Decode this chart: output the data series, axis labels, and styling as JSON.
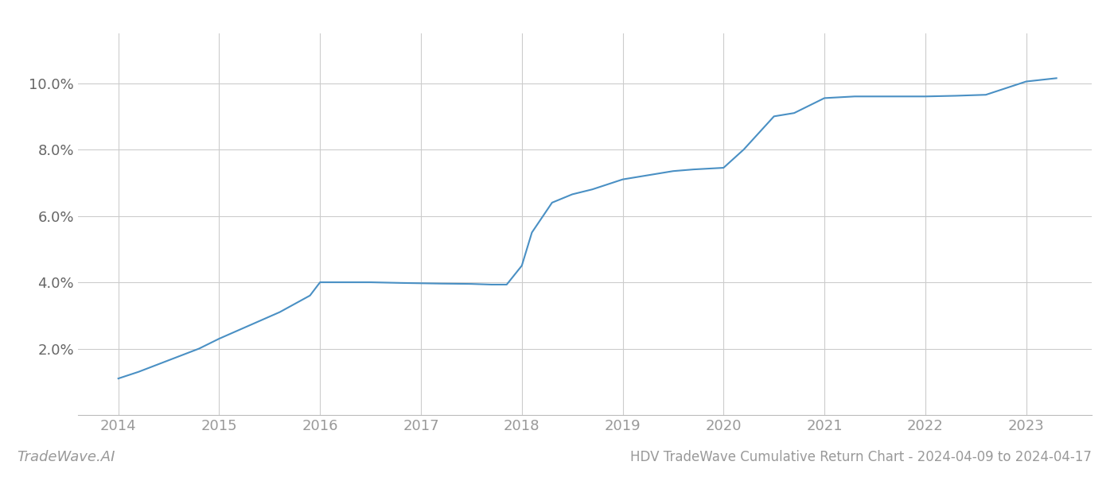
{
  "x_years": [
    2014.0,
    2014.2,
    2014.5,
    2014.8,
    2015.0,
    2015.3,
    2015.6,
    2015.9,
    2016.0,
    2016.2,
    2016.5,
    2016.8,
    2017.0,
    2017.2,
    2017.5,
    2017.7,
    2017.85,
    2018.0,
    2018.1,
    2018.3,
    2018.5,
    2018.7,
    2019.0,
    2019.2,
    2019.5,
    2019.7,
    2020.0,
    2020.2,
    2020.5,
    2020.7,
    2021.0,
    2021.3,
    2021.6,
    2022.0,
    2022.3,
    2022.6,
    2023.0,
    2023.3
  ],
  "y_values": [
    1.1,
    1.3,
    1.65,
    2.0,
    2.3,
    2.7,
    3.1,
    3.6,
    4.0,
    4.0,
    4.0,
    3.98,
    3.97,
    3.96,
    3.95,
    3.93,
    3.93,
    4.5,
    5.5,
    6.4,
    6.65,
    6.8,
    7.1,
    7.2,
    7.35,
    7.4,
    7.45,
    8.0,
    9.0,
    9.1,
    9.55,
    9.6,
    9.6,
    9.6,
    9.62,
    9.65,
    10.05,
    10.15
  ],
  "line_color": "#4a90c4",
  "line_width": 1.5,
  "background_color": "#ffffff",
  "grid_color": "#cccccc",
  "ylabel_color": "#666666",
  "xlabel_color": "#999999",
  "title": "HDV TradeWave Cumulative Return Chart - 2024-04-09 to 2024-04-17",
  "watermark": "TradeWave.AI",
  "x_ticks": [
    2014,
    2015,
    2016,
    2017,
    2018,
    2019,
    2020,
    2021,
    2022,
    2023
  ],
  "x_tick_labels": [
    "2014",
    "2015",
    "2016",
    "2017",
    "2018",
    "2019",
    "2020",
    "2021",
    "2022",
    "2023"
  ],
  "ylim": [
    0.0,
    11.5
  ],
  "xlim": [
    2013.6,
    2023.65
  ],
  "y_ticks": [
    2.0,
    4.0,
    6.0,
    8.0,
    10.0
  ],
  "tick_fontsize": 13,
  "watermark_fontsize": 13,
  "title_fontsize": 12
}
